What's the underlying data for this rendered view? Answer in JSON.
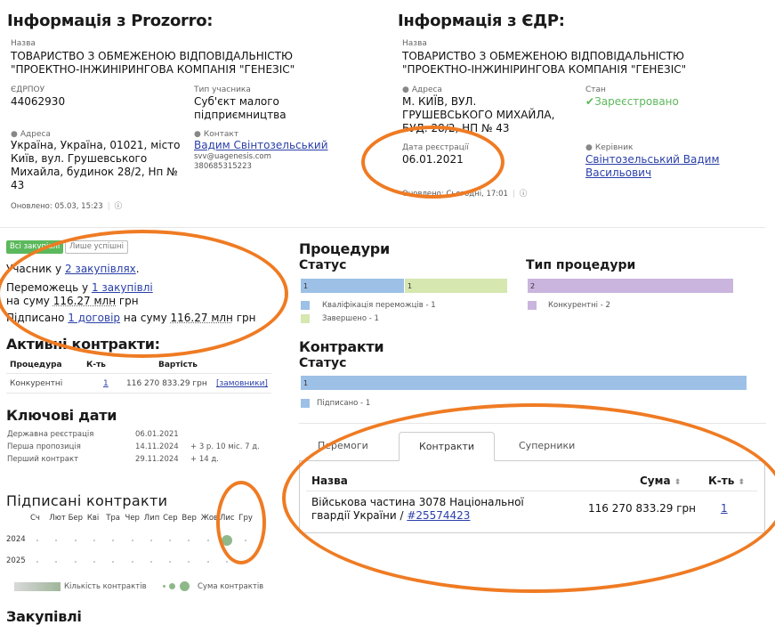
{
  "prozorro": {
    "title": "Інформація з Prozorro:",
    "name_label": "Назва",
    "name_line1": "ТОВАРИСТВО З ОБМЕЖЕНОЮ ВІДПОВІДАЛЬНІСТЮ",
    "name_line2": "\"ПРОЕКТНО-ІНЖИНІРИНГОВА КОМПАНІЯ \"ГЕНЕЗІС\"",
    "edrpou_label": "ЄДРПОУ",
    "edrpou": "44062930",
    "type_label": "Тип учасника",
    "type_line1": "Суб'єкт малого",
    "type_line2": "підприємництва",
    "address_label": "Адреса",
    "address_line1": "Україна, Україна, 01021, місто",
    "address_line2": "Київ, вул. Грушевського",
    "address_line3": "Михайла, будинок 28/2, Нп №",
    "address_line4": "43",
    "contact_label": "Контакт",
    "contact_name": "Вадим Свінтозельський",
    "contact_email": "svv@uagenesis.com",
    "contact_phone": "380685315223",
    "updated": "Оновлено: 05.03, 15:23"
  },
  "edr": {
    "title": "Інформація з ЄДР:",
    "name_label": "Назва",
    "name_line1": "ТОВАРИСТВО З ОБМЕЖЕНОЮ ВІДПОВІДАЛЬНІСТЮ",
    "name_line2": "\"ПРОЕКТНО-ІНЖИНІРИНГОВА КОМПАНІЯ \"ГЕНЕЗІС\"",
    "address_label": "Адреса",
    "address_line1": "М. КИЇВ, ВУЛ.",
    "address_line2": "ГРУШЕВСЬКОГО МИХАЙЛА,",
    "address_line3": "БУД. 28/2, НП № 43",
    "status_label": "Стан",
    "status": "Зареєстровано",
    "regdate_label": "Дата реєстрації",
    "regdate": "06.01.2021",
    "head_label": "Керівник",
    "head_line1": "Свінтозельський Вадим",
    "head_line2": "Васильович",
    "updated": "Оновлено: Сьогодні, 17:01"
  },
  "filters": {
    "all": "Всі закупівлі",
    "success": "Лише успішні"
  },
  "summary": {
    "l1_pre": "Учасник у ",
    "l1_link": "2 закупівлях",
    "l1_post": ".",
    "l2_pre": "Переможець у ",
    "l2_link": "1 закупівлі",
    "l3_pre": "на суму ",
    "l3_amount": "116.27 млн",
    "l3_post": " грн",
    "l4_pre": "Підписано ",
    "l4_link": "1 договір",
    "l4_mid": " на суму ",
    "l4_amount": "116.27 млн",
    "l4_post": " грн"
  },
  "active": {
    "title": "Активні контракти:",
    "headers": [
      "Процедура",
      "К-ть",
      "Вартість"
    ],
    "row": {
      "procedure": "Конкурентні",
      "count": "1",
      "value": "116 270 833.29 грн",
      "link": "[замовники]"
    }
  },
  "dates": {
    "title": "Ключові дати",
    "rows": [
      {
        "label": "Державна реєстрація",
        "date": "06.01.2021",
        "delta": ""
      },
      {
        "label": "Перша пропозиція",
        "date": "14.11.2024",
        "delta": "+ 3 р. 10 міс. 7 д."
      },
      {
        "label": "Перший контракт",
        "date": "29.11.2024",
        "delta": "+ 14 д."
      }
    ]
  },
  "signed": {
    "title": "Підписані контракти",
    "months": [
      "Сч",
      "Лют",
      "Бер",
      "Кві",
      "Тра",
      "Чер",
      "Лип",
      "Сер",
      "Вер",
      "Жов",
      "Лис",
      "Гру"
    ],
    "years": [
      "2024",
      "2025"
    ],
    "legend_count": "Кількість контрактів",
    "legend_sum": "Сума контрактів"
  },
  "purchases": {
    "title": "Закупівлі"
  },
  "procedures": {
    "title": "Процедури",
    "status_title": "Статус",
    "status_bars": [
      {
        "label": "1",
        "value": 1,
        "color": "#9dc0e6"
      },
      {
        "label": "1",
        "value": 1,
        "color": "#d6e7b0"
      }
    ],
    "status_legend": [
      "Кваліфікація переможців - 1",
      "Завершено - 1"
    ],
    "type_title": "Тип процедури",
    "type_bars": [
      {
        "label": "2",
        "value": 2,
        "color": "#c9b5dd"
      }
    ],
    "type_legend": [
      "Конкурентні - 2"
    ]
  },
  "contracts": {
    "title": "Контракти",
    "status_title": "Статус",
    "bar_label": "1",
    "bar_color": "#9dc0e6",
    "legend": "Підписано - 1"
  },
  "tabs": [
    "Перемоги",
    "Контракти",
    "Суперники"
  ],
  "table": {
    "headers": {
      "name": "Назва",
      "sum": "Сума",
      "count": "К-ть"
    },
    "row": {
      "name_line1": "Військова частина 3078 Національної",
      "name_line2": "гвардії України / ",
      "name_link": "#25574423",
      "sum": "116 270 833.29 грн",
      "count": "1"
    }
  },
  "colors": {
    "accent": "#ef7b23",
    "link": "#2a3fa8",
    "ok": "#5cb85c"
  }
}
